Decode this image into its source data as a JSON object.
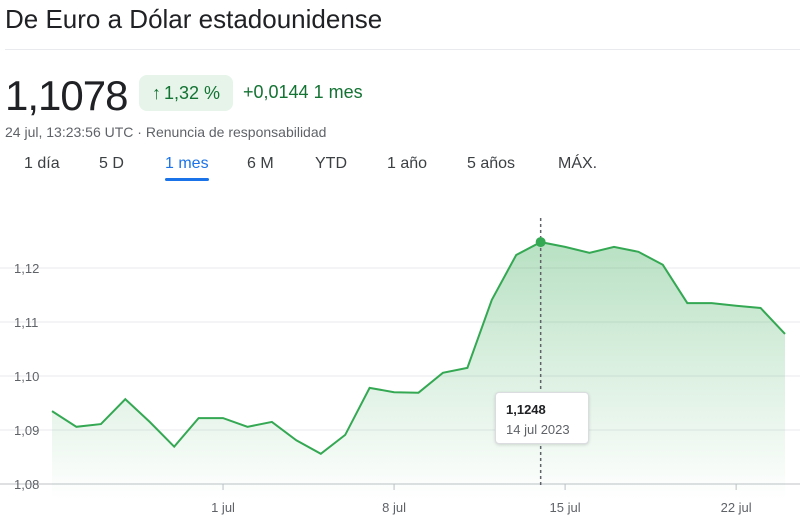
{
  "header": {
    "title": "De Euro a Dólar estadounidense",
    "price": "1,1078",
    "change_pct": "1,32 %",
    "change_abs": "+0,0144 1 mes",
    "timestamp": "24 jul, 13:23:56 UTC · Renuncia de responsabilidad",
    "up_icon": "arrow-up-icon"
  },
  "tabs": [
    {
      "label": "1 día"
    },
    {
      "label": "5 D"
    },
    {
      "label": "1 mes",
      "active": true
    },
    {
      "label": "6 M"
    },
    {
      "label": "YTD"
    },
    {
      "label": "1 año"
    },
    {
      "label": "5 años"
    },
    {
      "label": "MÁX."
    }
  ],
  "tooltip": {
    "value": "1,1248",
    "date": "14 jul 2023"
  },
  "colors": {
    "line": "#34a853",
    "positive": "#137333",
    "accent": "#1a73e8"
  },
  "chart_data": {
    "type": "area",
    "x_start": "2023-06-24",
    "x_end": "2023-07-24",
    "x_ticks": [
      "1 jul",
      "8 jul",
      "15 jul",
      "22 jul"
    ],
    "y_ticks": [
      "1,08",
      "1,09",
      "1,10",
      "1,11",
      "1,12"
    ],
    "ylim": [
      1.08,
      1.12
    ],
    "grid": true,
    "values": [
      1.0935,
      1.0906,
      1.0911,
      1.0957,
      1.0915,
      1.0869,
      1.0922,
      1.0922,
      1.0906,
      1.0915,
      1.0881,
      1.0856,
      1.0891,
      1.0978,
      1.097,
      1.0969,
      1.1006,
      1.1015,
      1.1141,
      1.1224,
      1.1248,
      1.1239,
      1.1228,
      1.1239,
      1.123,
      1.1206,
      1.1135,
      1.1135,
      1.113,
      1.1126,
      1.1078
    ],
    "highlight_index": 20
  }
}
